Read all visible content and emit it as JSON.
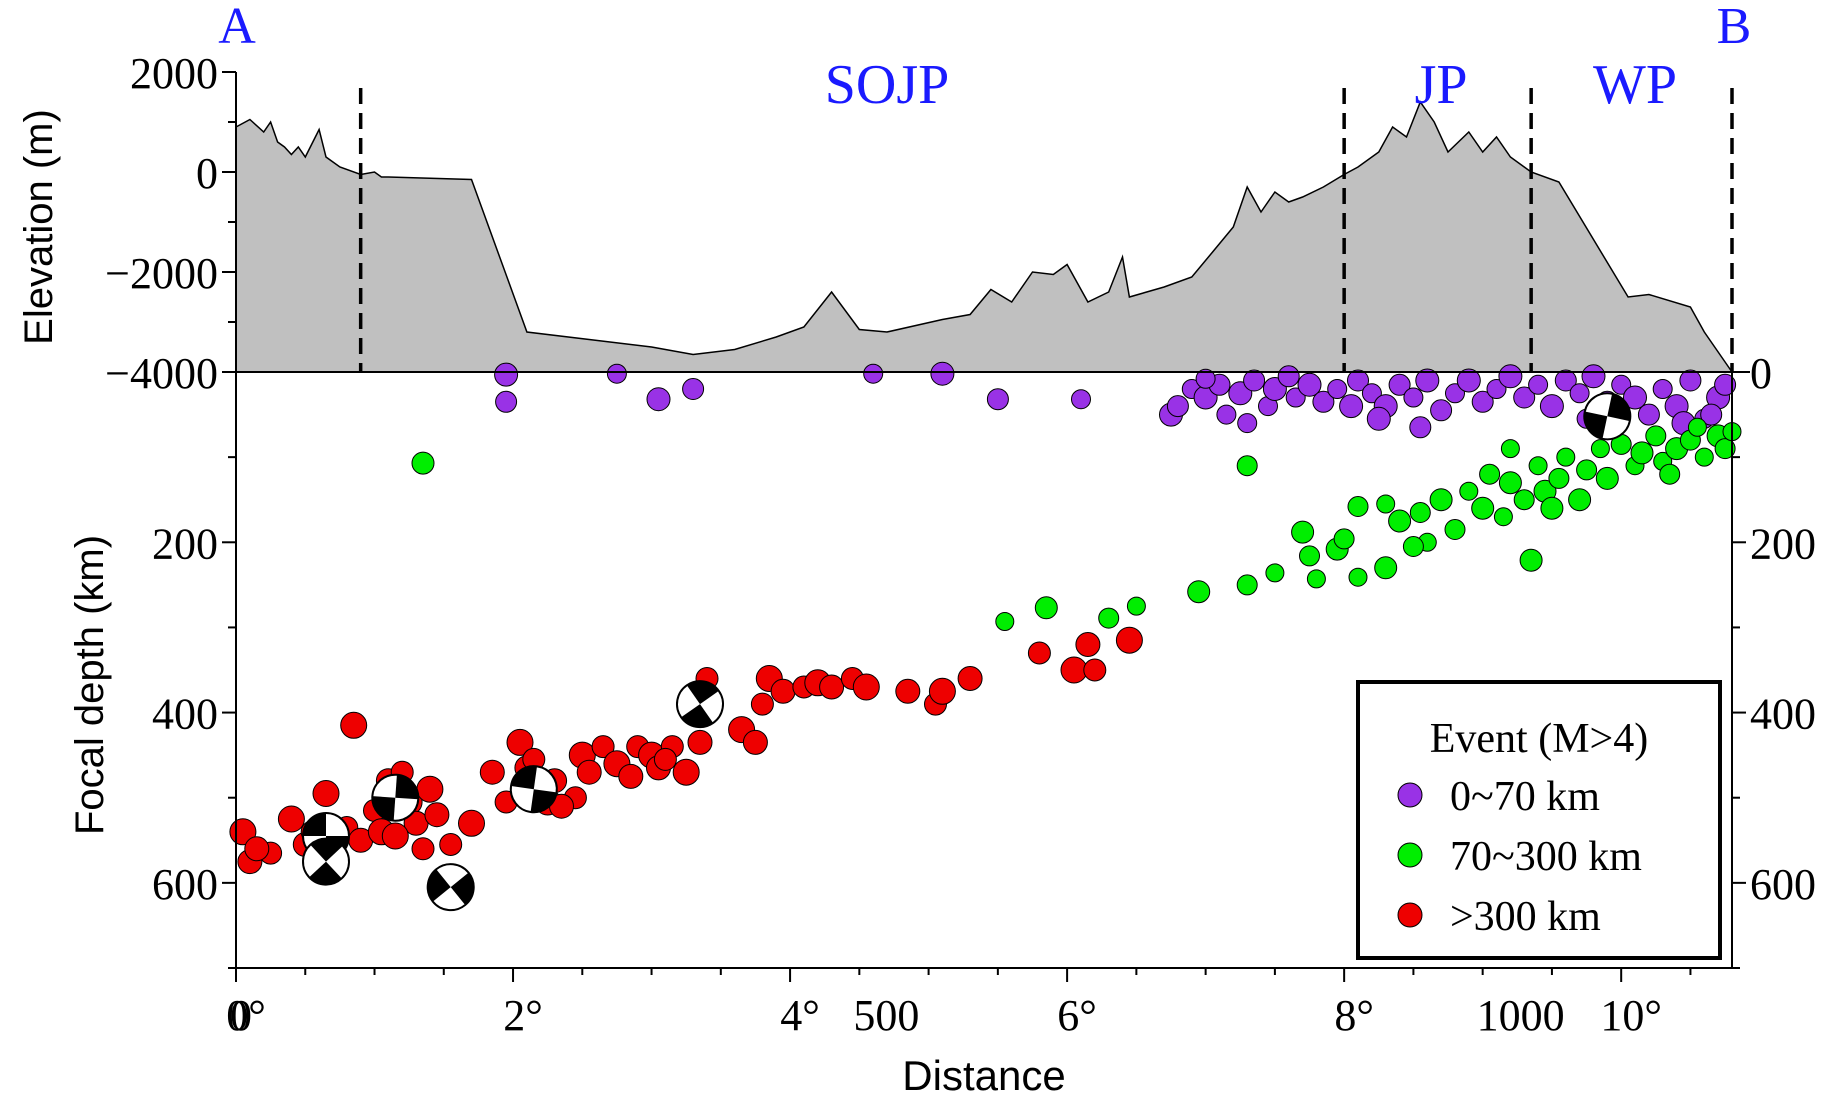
{
  "chart_data": [
    {
      "type": "area",
      "panel": "elevation-profile",
      "ylabel": "Elevation (m)",
      "ylim": [
        -4000,
        2000
      ],
      "yticks": [
        2000,
        0,
        -2000,
        -4000
      ],
      "ytick_labels": [
        "2000",
        "0",
        "−2000",
        "−4000"
      ],
      "x_unit": "degrees",
      "xlim": [
        0,
        10.8
      ],
      "fill_color": "#c0c0c0",
      "section_end_labels": [
        "A",
        "B"
      ],
      "boundaries_deg": [
        0.9,
        8.0,
        9.35,
        10.8
      ],
      "region_labels": [
        {
          "label": "SOJP",
          "x": 4.7
        },
        {
          "label": "JP",
          "x": 8.7
        },
        {
          "label": "WP",
          "x": 10.1
        }
      ],
      "profile": [
        [
          0.0,
          900
        ],
        [
          0.1,
          1050
        ],
        [
          0.2,
          800
        ],
        [
          0.25,
          1000
        ],
        [
          0.3,
          600
        ],
        [
          0.35,
          500
        ],
        [
          0.4,
          350
        ],
        [
          0.45,
          500
        ],
        [
          0.5,
          300
        ],
        [
          0.6,
          850
        ],
        [
          0.65,
          300
        ],
        [
          0.75,
          100
        ],
        [
          0.9,
          -50
        ],
        [
          1.0,
          0
        ],
        [
          1.05,
          -100
        ],
        [
          1.1,
          -100
        ],
        [
          1.7,
          -150
        ],
        [
          2.1,
          -3200
        ],
        [
          3.0,
          -3500
        ],
        [
          3.3,
          -3650
        ],
        [
          3.6,
          -3550
        ],
        [
          3.9,
          -3300
        ],
        [
          4.1,
          -3100
        ],
        [
          4.3,
          -2400
        ],
        [
          4.5,
          -3150
        ],
        [
          4.7,
          -3200
        ],
        [
          5.1,
          -2950
        ],
        [
          5.3,
          -2850
        ],
        [
          5.45,
          -2350
        ],
        [
          5.6,
          -2600
        ],
        [
          5.75,
          -2000
        ],
        [
          5.9,
          -2050
        ],
        [
          6.0,
          -1850
        ],
        [
          6.15,
          -2600
        ],
        [
          6.3,
          -2400
        ],
        [
          6.4,
          -1700
        ],
        [
          6.45,
          -2500
        ],
        [
          6.7,
          -2300
        ],
        [
          6.9,
          -2100
        ],
        [
          7.05,
          -1600
        ],
        [
          7.2,
          -1100
        ],
        [
          7.3,
          -300
        ],
        [
          7.4,
          -800
        ],
        [
          7.5,
          -400
        ],
        [
          7.6,
          -600
        ],
        [
          7.7,
          -500
        ],
        [
          7.85,
          -300
        ],
        [
          8.0,
          -50
        ],
        [
          8.1,
          100
        ],
        [
          8.25,
          400
        ],
        [
          8.35,
          900
        ],
        [
          8.45,
          700
        ],
        [
          8.55,
          1400
        ],
        [
          8.65,
          1000
        ],
        [
          8.75,
          400
        ],
        [
          8.9,
          800
        ],
        [
          9.0,
          400
        ],
        [
          9.1,
          700
        ],
        [
          9.2,
          300
        ],
        [
          9.35,
          0
        ],
        [
          9.55,
          -200
        ],
        [
          10.05,
          -2500
        ],
        [
          10.2,
          -2450
        ],
        [
          10.5,
          -2700
        ],
        [
          10.6,
          -3200
        ],
        [
          10.8,
          -4000
        ]
      ]
    },
    {
      "type": "scatter",
      "panel": "focal-depth",
      "xlabel": "Distance",
      "ylabel": "Focal depth (km)",
      "ylim": [
        700,
        0
      ],
      "yticks": [
        0,
        200,
        400,
        600
      ],
      "x_unit": "degrees",
      "xlim": [
        0,
        10.8
      ],
      "xticks_deg": [
        0,
        2,
        4,
        6,
        8,
        10
      ],
      "xtick_labels": [
        "0°",
        "2°",
        "4°",
        "6°",
        "8°",
        "10°"
      ],
      "km_tick_labels": [
        {
          "deg": 0,
          "label": "0"
        },
        {
          "deg": 4.5,
          "label": "500"
        },
        {
          "deg": 9.0,
          "label": "1000"
        }
      ],
      "legend": {
        "title": "Event (M>4)",
        "position": "bottom-right",
        "entries": [
          {
            "label": "0~70 km",
            "color": "#9932e6"
          },
          {
            "label": "70~300 km",
            "color": "#00ee00"
          },
          {
            "label": ">300 km",
            "color": "#ee0000"
          }
        ]
      },
      "series": [
        {
          "name": "0~70 km",
          "color": "#9932e6",
          "points": [
            [
              1.95,
              3
            ],
            [
              1.95,
              35
            ],
            [
              2.75,
              2
            ],
            [
              3.05,
              32
            ],
            [
              3.3,
              20
            ],
            [
              4.6,
              2
            ],
            [
              5.1,
              2
            ],
            [
              5.5,
              32
            ],
            [
              6.1,
              32
            ],
            [
              6.75,
              50
            ],
            [
              6.8,
              40
            ],
            [
              6.9,
              20
            ],
            [
              7.0,
              30
            ],
            [
              7.1,
              15
            ],
            [
              7.15,
              50
            ],
            [
              7.25,
              25
            ],
            [
              7.35,
              10
            ],
            [
              7.45,
              40
            ],
            [
              7.5,
              20
            ],
            [
              7.6,
              5
            ],
            [
              7.65,
              30
            ],
            [
              7.75,
              15
            ],
            [
              7.85,
              35
            ],
            [
              7.95,
              20
            ],
            [
              8.05,
              40
            ],
            [
              8.1,
              10
            ],
            [
              8.2,
              25
            ],
            [
              8.3,
              40
            ],
            [
              8.4,
              15
            ],
            [
              8.5,
              30
            ],
            [
              8.6,
              10
            ],
            [
              8.7,
              45
            ],
            [
              8.8,
              25
            ],
            [
              8.9,
              10
            ],
            [
              9.0,
              35
            ],
            [
              9.1,
              20
            ],
            [
              9.2,
              5
            ],
            [
              9.3,
              30
            ],
            [
              9.4,
              15
            ],
            [
              9.5,
              40
            ],
            [
              9.6,
              10
            ],
            [
              9.7,
              25
            ],
            [
              9.8,
              5
            ],
            [
              9.9,
              35
            ],
            [
              10.0,
              15
            ],
            [
              10.1,
              30
            ],
            [
              10.2,
              50
            ],
            [
              10.3,
              20
            ],
            [
              10.4,
              40
            ],
            [
              10.5,
              10
            ],
            [
              10.6,
              55
            ],
            [
              10.7,
              30
            ],
            [
              10.75,
              15
            ],
            [
              7.3,
              60
            ],
            [
              8.25,
              55
            ],
            [
              8.55,
              65
            ],
            [
              9.75,
              55
            ],
            [
              10.45,
              60
            ],
            [
              10.65,
              50
            ],
            [
              7.0,
              8
            ]
          ]
        },
        {
          "name": "70~300 km",
          "color": "#00ee00",
          "points": [
            [
              1.35,
              107
            ],
            [
              7.3,
              110
            ],
            [
              5.55,
              293
            ],
            [
              5.85,
              277
            ],
            [
              6.3,
              289
            ],
            [
              6.5,
              275
            ],
            [
              6.95,
              258
            ],
            [
              7.3,
              250
            ],
            [
              7.5,
              236
            ],
            [
              7.7,
              188
            ],
            [
              7.75,
              216
            ],
            [
              7.8,
              243
            ],
            [
              7.95,
              208
            ],
            [
              8.0,
              196
            ],
            [
              8.1,
              241
            ],
            [
              8.3,
              230
            ],
            [
              8.1,
              158
            ],
            [
              8.3,
              155
            ],
            [
              8.4,
              175
            ],
            [
              8.55,
              165
            ],
            [
              8.6,
              200
            ],
            [
              8.7,
              150
            ],
            [
              8.8,
              185
            ],
            [
              8.9,
              140
            ],
            [
              9.0,
              160
            ],
            [
              9.05,
              120
            ],
            [
              9.15,
              170
            ],
            [
              9.2,
              130
            ],
            [
              9.3,
              150
            ],
            [
              9.4,
              110
            ],
            [
              9.45,
              140
            ],
            [
              9.55,
              125
            ],
            [
              9.6,
              100
            ],
            [
              9.7,
              150
            ],
            [
              9.75,
              115
            ],
            [
              9.85,
              90
            ],
            [
              9.9,
              125
            ],
            [
              10.0,
              85
            ],
            [
              10.1,
              110
            ],
            [
              10.15,
              95
            ],
            [
              10.25,
              75
            ],
            [
              10.3,
              105
            ],
            [
              10.4,
              90
            ],
            [
              10.5,
              80
            ],
            [
              10.6,
              100
            ],
            [
              10.7,
              75
            ],
            [
              10.75,
              90
            ],
            [
              10.8,
              70
            ],
            [
              9.35,
              221
            ],
            [
              8.5,
              205
            ],
            [
              9.2,
              90
            ],
            [
              9.5,
              160
            ],
            [
              10.35,
              120
            ],
            [
              10.55,
              65
            ]
          ]
        },
        {
          "name": ">300 km",
          "color": "#ee0000",
          "points": [
            [
              0.05,
              540
            ],
            [
              0.1,
              575
            ],
            [
              0.25,
              565
            ],
            [
              0.4,
              525
            ],
            [
              0.5,
              555
            ],
            [
              0.55,
              540
            ],
            [
              0.65,
              495
            ],
            [
              0.7,
              560
            ],
            [
              0.8,
              535
            ],
            [
              0.85,
              415
            ],
            [
              0.9,
              550
            ],
            [
              1.0,
              515
            ],
            [
              1.05,
              540
            ],
            [
              1.1,
              480
            ],
            [
              1.2,
              470
            ],
            [
              1.25,
              505
            ],
            [
              1.3,
              530
            ],
            [
              1.35,
              560
            ],
            [
              1.4,
              490
            ],
            [
              1.45,
              520
            ],
            [
              1.55,
              555
            ],
            [
              1.7,
              530
            ],
            [
              1.85,
              470
            ],
            [
              1.95,
              505
            ],
            [
              2.05,
              435
            ],
            [
              2.1,
              465
            ],
            [
              2.15,
              455
            ],
            [
              2.25,
              505
            ],
            [
              2.3,
              480
            ],
            [
              2.45,
              500
            ],
            [
              2.5,
              450
            ],
            [
              2.55,
              470
            ],
            [
              2.65,
              440
            ],
            [
              2.75,
              460
            ],
            [
              2.85,
              475
            ],
            [
              2.9,
              440
            ],
            [
              3.0,
              450
            ],
            [
              3.05,
              465
            ],
            [
              3.15,
              440
            ],
            [
              3.25,
              470
            ],
            [
              3.35,
              435
            ],
            [
              3.4,
              360
            ],
            [
              3.65,
              420
            ],
            [
              3.75,
              435
            ],
            [
              3.8,
              390
            ],
            [
              3.85,
              360
            ],
            [
              3.95,
              375
            ],
            [
              4.1,
              370
            ],
            [
              4.2,
              365
            ],
            [
              4.3,
              370
            ],
            [
              4.45,
              360
            ],
            [
              4.55,
              370
            ],
            [
              4.85,
              375
            ],
            [
              5.05,
              390
            ],
            [
              5.1,
              375
            ],
            [
              5.3,
              360
            ],
            [
              5.8,
              330
            ],
            [
              6.05,
              350
            ],
            [
              6.15,
              320
            ],
            [
              6.2,
              350
            ],
            [
              6.45,
              315
            ],
            [
              0.15,
              560
            ],
            [
              0.6,
              575
            ],
            [
              1.15,
              545
            ],
            [
              2.35,
              510
            ],
            [
              3.1,
              455
            ]
          ]
        }
      ],
      "focal_mechanisms": [
        {
          "x": 0.65,
          "y": 545
        },
        {
          "x": 0.65,
          "y": 575
        },
        {
          "x": 1.15,
          "y": 500
        },
        {
          "x": 1.55,
          "y": 605
        },
        {
          "x": 2.15,
          "y": 490
        },
        {
          "x": 3.35,
          "y": 390
        },
        {
          "x": 9.9,
          "y": 52
        }
      ]
    }
  ]
}
